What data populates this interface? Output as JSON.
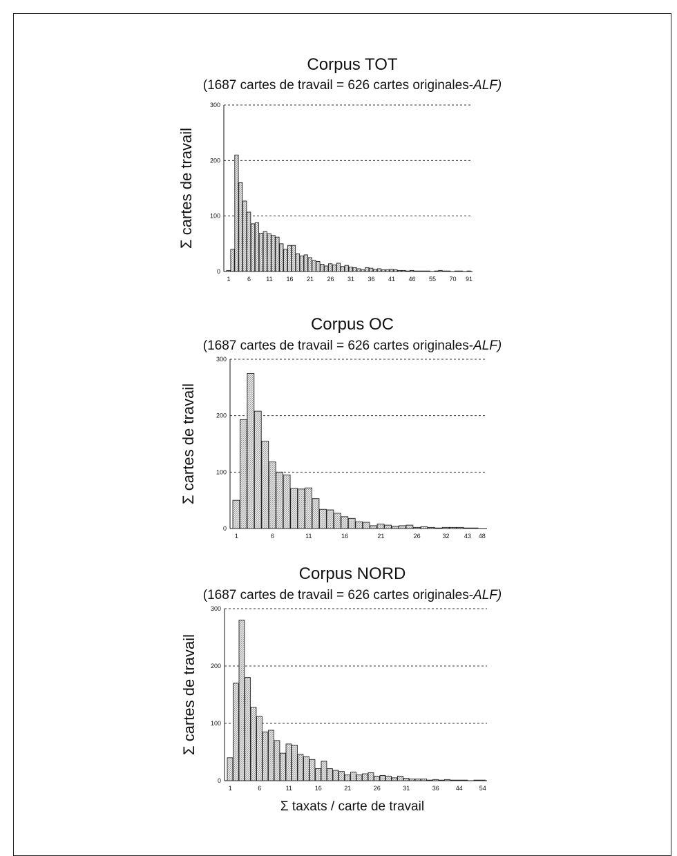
{
  "chart_data": [
    {
      "type": "bar",
      "title": "Corpus TOT",
      "subtitle_prefix": "(1687 cartes de travail = 626 cartes originales-",
      "subtitle_italic": "ALF)",
      "ylabel": "Σ cartes de travail",
      "xlabel": "",
      "ylim": [
        0,
        300
      ],
      "yticks": [
        "0",
        "100",
        "200",
        "300"
      ],
      "xtick_labels": [
        "1",
        "6",
        "11",
        "16",
        "21",
        "26",
        "31",
        "36",
        "41",
        "46",
        "55",
        "70",
        "91"
      ],
      "xtick_bar_index": [
        0,
        5,
        10,
        15,
        20,
        25,
        30,
        35,
        40,
        45,
        50,
        55,
        59
      ],
      "grid": "horizontal dotted",
      "values": [
        2,
        40,
        210,
        160,
        127,
        107,
        86,
        88,
        69,
        72,
        68,
        65,
        62,
        50,
        40,
        47,
        47,
        32,
        28,
        30,
        25,
        20,
        18,
        13,
        10,
        14,
        12,
        15,
        9,
        11,
        8,
        7,
        5,
        3,
        7,
        6,
        4,
        5,
        3,
        3,
        4,
        3,
        2,
        2,
        1,
        2,
        1,
        1,
        1,
        1,
        0,
        1,
        2,
        1,
        1,
        0,
        1,
        1,
        0,
        1
      ]
    },
    {
      "type": "bar",
      "title": "Corpus OC",
      "subtitle_prefix": "(1687 cartes de travail = 626 cartes originales-",
      "subtitle_italic": "ALF)",
      "ylabel": "Σ cartes de travail",
      "xlabel": "",
      "ylim": [
        0,
        300
      ],
      "yticks": [
        "0",
        "100",
        "200",
        "300"
      ],
      "xtick_labels": [
        "1",
        "6",
        "11",
        "16",
        "21",
        "26",
        "32",
        "43",
        "48"
      ],
      "xtick_bar_index": [
        0,
        5,
        10,
        15,
        20,
        25,
        29,
        32,
        34
      ],
      "grid": "horizontal dotted",
      "values": [
        50,
        193,
        275,
        208,
        155,
        118,
        100,
        95,
        71,
        70,
        72,
        53,
        34,
        33,
        27,
        21,
        18,
        12,
        11,
        5,
        8,
        6,
        4,
        5,
        6,
        2,
        3,
        2,
        1,
        2,
        2,
        2,
        1,
        1,
        0
      ]
    },
    {
      "type": "bar",
      "title": "Corpus NORD",
      "subtitle_prefix": "(1687 cartes de travail = 626 cartes originales-",
      "subtitle_italic": "ALF)",
      "ylabel": "Σ cartes de travail",
      "xlabel": "Σ taxats / carte de travail",
      "ylim": [
        0,
        300
      ],
      "yticks": [
        "0",
        "100",
        "200",
        "300"
      ],
      "xtick_labels": [
        "1",
        "6",
        "11",
        "16",
        "21",
        "26",
        "31",
        "36",
        "44",
        "54"
      ],
      "xtick_bar_index": [
        0,
        5,
        10,
        15,
        20,
        25,
        30,
        35,
        39,
        43
      ],
      "grid": "horizontal dotted",
      "values": [
        40,
        170,
        280,
        180,
        128,
        112,
        85,
        88,
        70,
        48,
        64,
        62,
        46,
        42,
        37,
        21,
        34,
        21,
        18,
        16,
        10,
        15,
        10,
        12,
        14,
        8,
        9,
        8,
        5,
        8,
        4,
        3,
        3,
        3,
        1,
        2,
        1,
        2,
        1,
        1,
        1,
        0,
        1,
        1
      ]
    }
  ]
}
